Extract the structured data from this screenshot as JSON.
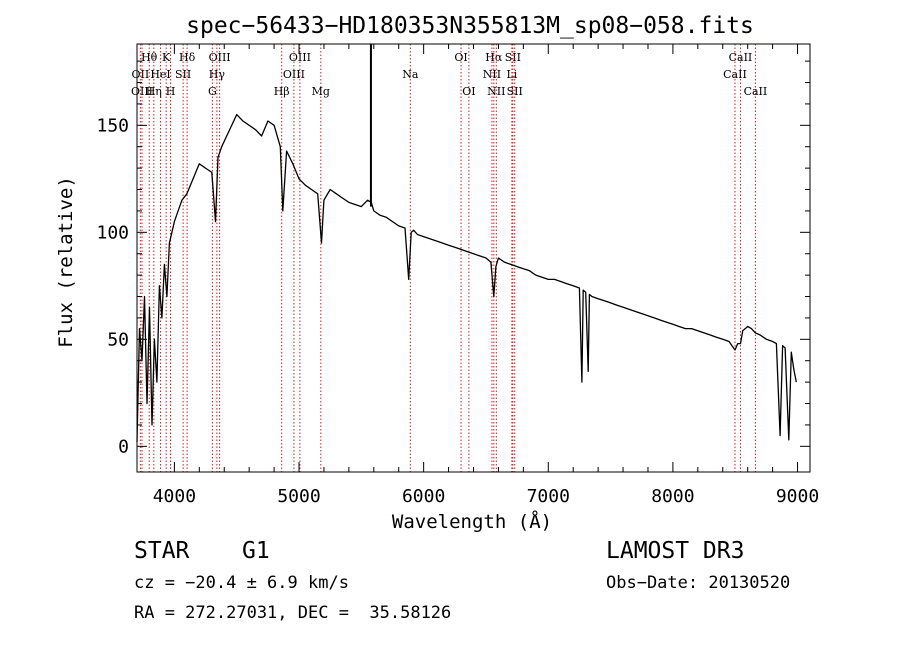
{
  "chart_data": {
    "type": "line",
    "title": "spec−56433−HD180353N355813M_sp08−058.fits",
    "xlabel": "Wavelength (Å)",
    "ylabel": "Flux (relative)",
    "xlim": [
      3700,
      9100
    ],
    "ylim": [
      -12,
      188
    ],
    "x_ticks": [
      4000,
      5000,
      6000,
      7000,
      8000,
      9000
    ],
    "y_ticks": [
      0,
      50,
      100,
      150
    ],
    "series": [
      {
        "name": "flux",
        "x": [
          3700,
          3720,
          3740,
          3760,
          3780,
          3800,
          3820,
          3840,
          3860,
          3880,
          3900,
          3920,
          3940,
          3960,
          3980,
          4000,
          4030,
          4060,
          4100,
          4150,
          4200,
          4250,
          4300,
          4330,
          4350,
          4380,
          4420,
          4460,
          4500,
          4550,
          4600,
          4650,
          4700,
          4750,
          4800,
          4850,
          4870,
          4900,
          4950,
          5000,
          5050,
          5100,
          5150,
          5180,
          5200,
          5250,
          5300,
          5350,
          5400,
          5450,
          5500,
          5550,
          5580,
          5600,
          5650,
          5700,
          5750,
          5800,
          5850,
          5880,
          5900,
          5920,
          5950,
          6000,
          6050,
          6100,
          6150,
          6200,
          6250,
          6300,
          6350,
          6400,
          6450,
          6500,
          6540,
          6563,
          6580,
          6600,
          6650,
          6700,
          6750,
          6800,
          6850,
          6900,
          6950,
          7000,
          7050,
          7100,
          7150,
          7200,
          7250,
          7270,
          7280,
          7300,
          7320,
          7330,
          7350,
          7400,
          7450,
          7500,
          7550,
          7600,
          7650,
          7700,
          7750,
          7800,
          7850,
          7900,
          7950,
          8000,
          8050,
          8100,
          8150,
          8200,
          8250,
          8300,
          8350,
          8400,
          8450,
          8498,
          8520,
          8542,
          8560,
          8600,
          8630,
          8662,
          8700,
          8750,
          8800,
          8830,
          8860,
          8880,
          8900,
          8930,
          8950,
          8970,
          8990
        ],
        "values": [
          2,
          55,
          40,
          70,
          20,
          65,
          10,
          50,
          30,
          75,
          60,
          85,
          70,
          95,
          100,
          105,
          110,
          115,
          118,
          125,
          132,
          130,
          128,
          105,
          135,
          140,
          145,
          150,
          155,
          152,
          150,
          148,
          145,
          152,
          150,
          140,
          110,
          138,
          132,
          125,
          122,
          120,
          118,
          95,
          115,
          120,
          118,
          116,
          114,
          113,
          112,
          115,
          114,
          110,
          108,
          107,
          105,
          103,
          102,
          78,
          100,
          101,
          99,
          98,
          97,
          96,
          95,
          94,
          93,
          92,
          91,
          90,
          89,
          88,
          86,
          70,
          84,
          88,
          86,
          85,
          84,
          83,
          82,
          80,
          79,
          78,
          78,
          77,
          76,
          75,
          74,
          30,
          73,
          72,
          35,
          71,
          70,
          69,
          68,
          67,
          66,
          65,
          64,
          63,
          62,
          61,
          60,
          59,
          58,
          57,
          56,
          55,
          55,
          54,
          53,
          52,
          51,
          50,
          49,
          45,
          48,
          48,
          54,
          56,
          55,
          53,
          52,
          50,
          49,
          48,
          5,
          47,
          46,
          3,
          44,
          36,
          30
        ]
      }
    ],
    "lines": [
      {
        "label": "Hθ",
        "wl": 3798,
        "row": 1
      },
      {
        "label": "OII",
        "wl": 3727,
        "row": 2
      },
      {
        "label": "OIII",
        "wl": 3740,
        "row": 3
      },
      {
        "label": "HeI",
        "wl": 3889,
        "row": 2
      },
      {
        "label": "Hη",
        "wl": 3835,
        "row": 3
      },
      {
        "label": "K",
        "wl": 3934,
        "row": 1
      },
      {
        "label": "SII",
        "wl": 4070,
        "row": 2
      },
      {
        "label": "H",
        "wl": 3969,
        "row": 3
      },
      {
        "label": "Hδ",
        "wl": 4102,
        "row": 1
      },
      {
        "label": "OIII",
        "wl": 4363,
        "row": 1
      },
      {
        "label": "Hγ",
        "wl": 4341,
        "row": 2
      },
      {
        "label": "G",
        "wl": 4305,
        "row": 3
      },
      {
        "label": "Hβ",
        "wl": 4861,
        "row": 3
      },
      {
        "label": "OIII",
        "wl": 5007,
        "row": 1
      },
      {
        "label": "OIII",
        "wl": 4959,
        "row": 2
      },
      {
        "label": "Mg",
        "wl": 5175,
        "row": 3
      },
      {
        "label": "Na",
        "wl": 5893,
        "row": 2
      },
      {
        "label": "OI",
        "wl": 6300,
        "row": 1
      },
      {
        "label": "OI",
        "wl": 6363,
        "row": 3
      },
      {
        "label": "Hα",
        "wl": 6563,
        "row": 1
      },
      {
        "label": "NII",
        "wl": 6548,
        "row": 2
      },
      {
        "label": "NII",
        "wl": 6583,
        "row": 3
      },
      {
        "label": "SII",
        "wl": 6716,
        "row": 1
      },
      {
        "label": "Li",
        "wl": 6708,
        "row": 2
      },
      {
        "label": "SII",
        "wl": 6731,
        "row": 3
      },
      {
        "label": "CaII",
        "wl": 8542,
        "row": 1
      },
      {
        "label": "CaII",
        "wl": 8498,
        "row": 2
      },
      {
        "label": "CaII",
        "wl": 8662,
        "row": 3
      }
    ],
    "spike_x": 5577,
    "grid": false
  },
  "info": {
    "object_class": "STAR",
    "subclass": "G1",
    "survey": "LAMOST DR3",
    "redshift": "cz = −20.4 ± 6.9 km/s",
    "obs_date": "Obs−Date: 20130520",
    "coordinates": "RA = 272.27031, DEC =  35.58126"
  },
  "colors": {
    "axis": "#000000",
    "spectrum": "#000000",
    "line_marker": "#c8201e"
  }
}
